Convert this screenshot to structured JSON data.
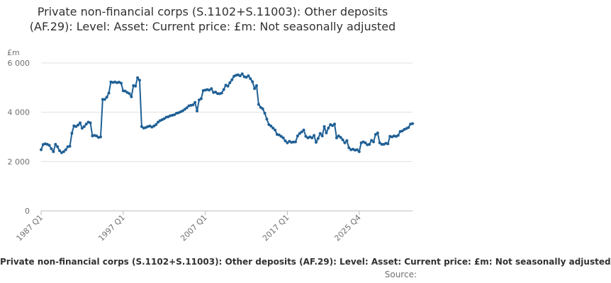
{
  "chart_data": {
    "type": "line",
    "title": "Private non-financial corps (S.1102+S.11003): Other deposits (AF.29): Level: Asset: Current price: £m: Not seasonally adjusted",
    "ylabel": "£m",
    "xlabel": "",
    "ylim": [
      0,
      6000
    ],
    "yticks": [
      0,
      2000,
      4000,
      6000
    ],
    "ytick_labels": [
      "0",
      "2 000",
      "4 000",
      "6 000"
    ],
    "xtick_labels": [
      "1987 Q1",
      "1997 Q1",
      "2007 Q1",
      "2017 Q1",
      "2025 Q4"
    ],
    "x_start_year": 1987,
    "grid": true,
    "legend": "none",
    "line_color": "#206095",
    "series": [
      {
        "values": [
          2480,
          2690,
          2720,
          2700,
          2660,
          2520,
          2400,
          2700,
          2600,
          2440,
          2360,
          2400,
          2480,
          2600,
          2620,
          3150,
          3450,
          3420,
          3480,
          3570,
          3350,
          3420,
          3520,
          3600,
          3570,
          3040,
          3060,
          3040,
          2980,
          3000,
          4520,
          4520,
          4610,
          4780,
          5230,
          5210,
          5230,
          5200,
          5220,
          5180,
          4870,
          4860,
          4800,
          4760,
          4630,
          5080,
          5060,
          5400,
          5300,
          3420,
          3360,
          3380,
          3420,
          3440,
          3400,
          3440,
          3500,
          3600,
          3660,
          3700,
          3740,
          3800,
          3820,
          3860,
          3880,
          3900,
          3960,
          3980,
          4020,
          4060,
          4120,
          4180,
          4260,
          4280,
          4300,
          4400,
          4050,
          4500,
          4550,
          4880,
          4900,
          4920,
          4900,
          4960,
          4800,
          4820,
          4760,
          4750,
          4780,
          4920,
          5100,
          5060,
          5200,
          5320,
          5460,
          5500,
          5520,
          5480,
          5560,
          5440,
          5420,
          5480,
          5360,
          5240,
          4960,
          5080,
          4320,
          4200,
          4140,
          3960,
          3720,
          3500,
          3440,
          3360,
          3280,
          3100,
          3080,
          3020,
          2960,
          2840,
          2760,
          2820,
          2780,
          2790,
          2800,
          3040,
          3140,
          3200,
          3280,
          3020,
          2960,
          3000,
          2960,
          3060,
          2780,
          2940,
          3140,
          3040,
          3420,
          3160,
          3360,
          3500,
          3460,
          3520,
          2960,
          3040,
          2980,
          2880,
          2760,
          2850,
          2560,
          2480,
          2500,
          2460,
          2480,
          2400,
          2760,
          2800,
          2760,
          2680,
          2700,
          2860,
          2800,
          3100,
          3160,
          2760,
          2700,
          2700,
          2740,
          2720,
          3020,
          3000,
          3040,
          3020,
          3060,
          3220,
          3240,
          3300,
          3340,
          3380,
          3520,
          3540
        ]
      }
    ]
  },
  "footer": {
    "caption": "Private non-financial corps (S.1102+S.11003): Other deposits (AF.29): Level: Asset: Current price: £m: Not seasonally adjusted",
    "source": "Source:"
  }
}
